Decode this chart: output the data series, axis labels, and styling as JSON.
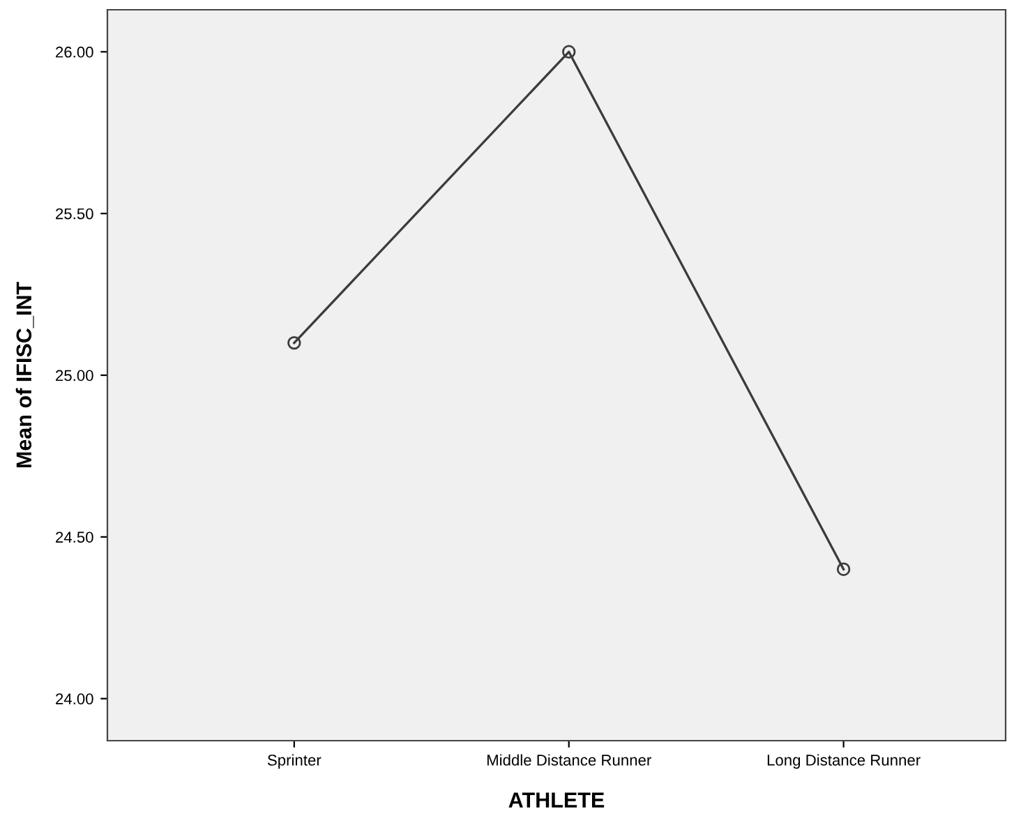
{
  "chart_data": {
    "type": "line",
    "xlabel": "ATHLETE",
    "ylabel": "Mean of IFISC_INT",
    "categories": [
      "Sprinter",
      "Middle Distance Runner",
      "Long Distance Runner"
    ],
    "series": [
      {
        "color": "#3c3c3c",
        "values": [
          25.1,
          26.0,
          24.4
        ]
      }
    ],
    "ylim": [
      23.87,
      26.13
    ],
    "yticks": [
      {
        "value": 24,
        "label": "24.00"
      },
      {
        "value": 24.5,
        "label": "24.50"
      },
      {
        "value": 25,
        "label": "25.00"
      },
      {
        "value": 25.5,
        "label": "25.50"
      },
      {
        "value": 26,
        "label": "26.00"
      }
    ],
    "grid": false,
    "legend": false,
    "marker": "circle",
    "line_style": "solid"
  }
}
